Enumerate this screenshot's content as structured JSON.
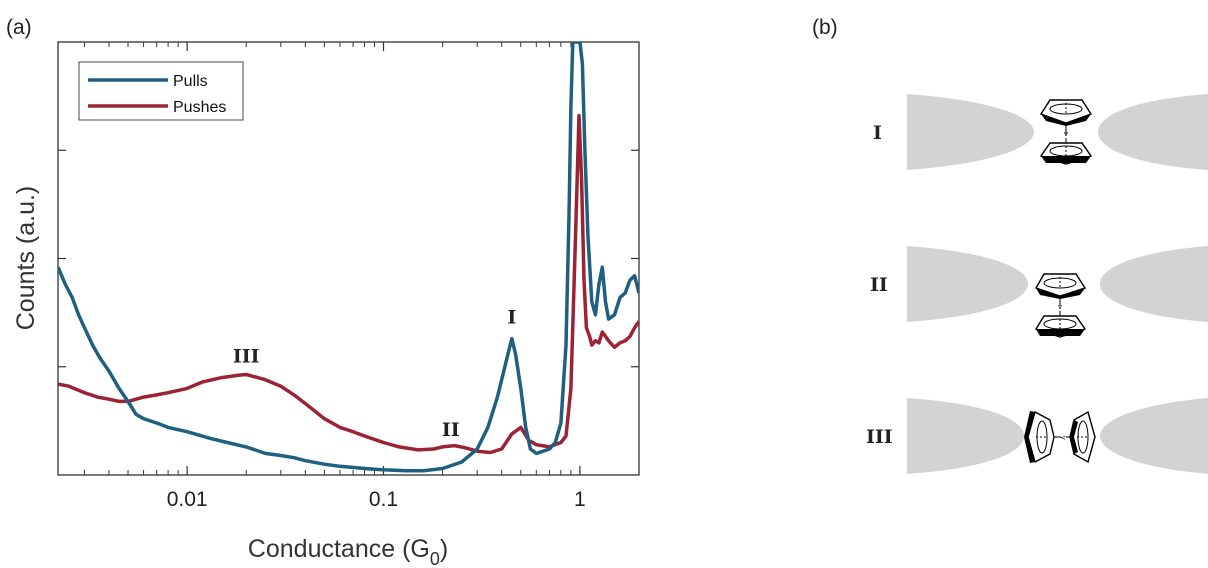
{
  "panels": {
    "a": "(a)",
    "b": "(b)"
  },
  "chart_data": {
    "type": "line",
    "xlabel": "Conductance (G",
    "xlabel_sub": "0",
    "xlabel_close": ")",
    "ylabel": "Counts (a.u.)",
    "x_scale": "log",
    "xlim": [
      0.0022,
      2.0
    ],
    "ylim": [
      0,
      100
    ],
    "x_ticks": [
      {
        "value": 0.01,
        "label": "0.01"
      },
      {
        "value": 0.1,
        "label": "0.1"
      },
      {
        "value": 1,
        "label": "1"
      }
    ],
    "y_ticks_unlabeled": [
      25,
      50,
      75
    ],
    "legend_position": "top-left",
    "series": [
      {
        "name": "Pulls",
        "color": "#1f5f7f",
        "points": [
          [
            0.0022,
            48
          ],
          [
            0.0024,
            44
          ],
          [
            0.0026,
            41
          ],
          [
            0.0028,
            37
          ],
          [
            0.003,
            34
          ],
          [
            0.0033,
            30
          ],
          [
            0.0036,
            27
          ],
          [
            0.004,
            24
          ],
          [
            0.0045,
            20
          ],
          [
            0.005,
            17
          ],
          [
            0.0055,
            14
          ],
          [
            0.006,
            13
          ],
          [
            0.007,
            12
          ],
          [
            0.008,
            11
          ],
          [
            0.01,
            10
          ],
          [
            0.013,
            8.5
          ],
          [
            0.016,
            7.5
          ],
          [
            0.02,
            6.5
          ],
          [
            0.025,
            5
          ],
          [
            0.03,
            4.5
          ],
          [
            0.035,
            4
          ],
          [
            0.04,
            3.3
          ],
          [
            0.05,
            2.5
          ],
          [
            0.06,
            2
          ],
          [
            0.08,
            1.5
          ],
          [
            0.1,
            1.2
          ],
          [
            0.13,
            1
          ],
          [
            0.16,
            1
          ],
          [
            0.2,
            1.5
          ],
          [
            0.25,
            3
          ],
          [
            0.3,
            6
          ],
          [
            0.34,
            11
          ],
          [
            0.38,
            18
          ],
          [
            0.42,
            26
          ],
          [
            0.45,
            31.5
          ],
          [
            0.47,
            28
          ],
          [
            0.5,
            20
          ],
          [
            0.53,
            11
          ],
          [
            0.56,
            6
          ],
          [
            0.6,
            5
          ],
          [
            0.65,
            5.5
          ],
          [
            0.7,
            6
          ],
          [
            0.75,
            7.5
          ],
          [
            0.8,
            12
          ],
          [
            0.85,
            30
          ],
          [
            0.88,
            60
          ],
          [
            0.9,
            85
          ],
          [
            0.92,
            100
          ],
          [
            1.0,
            100
          ],
          [
            1.03,
            95
          ],
          [
            1.06,
            75
          ],
          [
            1.1,
            55
          ],
          [
            1.15,
            40
          ],
          [
            1.2,
            37
          ],
          [
            1.25,
            44
          ],
          [
            1.3,
            48
          ],
          [
            1.35,
            40
          ],
          [
            1.4,
            36
          ],
          [
            1.5,
            37
          ],
          [
            1.6,
            41
          ],
          [
            1.7,
            42
          ],
          [
            1.8,
            45
          ],
          [
            1.9,
            46
          ],
          [
            2.0,
            42
          ]
        ]
      },
      {
        "name": "Pushes",
        "color": "#9b2335",
        "points": [
          [
            0.0022,
            21
          ],
          [
            0.0025,
            20.5
          ],
          [
            0.003,
            19
          ],
          [
            0.0035,
            18
          ],
          [
            0.004,
            17.5
          ],
          [
            0.0045,
            17
          ],
          [
            0.005,
            17
          ],
          [
            0.006,
            18
          ],
          [
            0.007,
            18.5
          ],
          [
            0.008,
            19
          ],
          [
            0.01,
            20
          ],
          [
            0.012,
            21.5
          ],
          [
            0.015,
            22.5
          ],
          [
            0.018,
            23
          ],
          [
            0.02,
            23.2
          ],
          [
            0.025,
            22
          ],
          [
            0.03,
            20.5
          ],
          [
            0.035,
            18.5
          ],
          [
            0.04,
            16.5
          ],
          [
            0.05,
            13
          ],
          [
            0.06,
            11
          ],
          [
            0.07,
            10
          ],
          [
            0.08,
            9
          ],
          [
            0.1,
            7.5
          ],
          [
            0.12,
            6.5
          ],
          [
            0.15,
            5.8
          ],
          [
            0.18,
            6
          ],
          [
            0.2,
            6.5
          ],
          [
            0.23,
            6.8
          ],
          [
            0.26,
            6.3
          ],
          [
            0.3,
            5.5
          ],
          [
            0.35,
            5.2
          ],
          [
            0.4,
            6
          ],
          [
            0.45,
            9.5
          ],
          [
            0.5,
            11
          ],
          [
            0.55,
            8
          ],
          [
            0.6,
            7
          ],
          [
            0.7,
            6.5
          ],
          [
            0.8,
            7.5
          ],
          [
            0.85,
            9
          ],
          [
            0.9,
            20
          ],
          [
            0.95,
            55
          ],
          [
            0.99,
            83
          ],
          [
            1.02,
            68
          ],
          [
            1.05,
            45
          ],
          [
            1.08,
            34
          ],
          [
            1.12,
            32
          ],
          [
            1.15,
            30
          ],
          [
            1.2,
            31
          ],
          [
            1.25,
            30.5
          ],
          [
            1.3,
            33
          ],
          [
            1.35,
            32
          ],
          [
            1.4,
            31
          ],
          [
            1.5,
            29.5
          ],
          [
            1.6,
            30.5
          ],
          [
            1.7,
            31
          ],
          [
            1.8,
            32
          ],
          [
            1.9,
            34
          ],
          [
            2.0,
            35.5
          ]
        ]
      }
    ],
    "annotations": [
      {
        "text": "I",
        "x": 0.45,
        "y": 35
      },
      {
        "text": "II",
        "x": 0.22,
        "y": 9
      },
      {
        "text": "III",
        "x": 0.02,
        "y": 26
      }
    ]
  },
  "schematic": {
    "configurations": [
      {
        "label": "I",
        "orientation": "stacked"
      },
      {
        "label": "II",
        "orientation": "stacked-offset"
      },
      {
        "label": "III",
        "orientation": "side-by-side"
      }
    ],
    "electrode_color": "#d3d3d3"
  }
}
